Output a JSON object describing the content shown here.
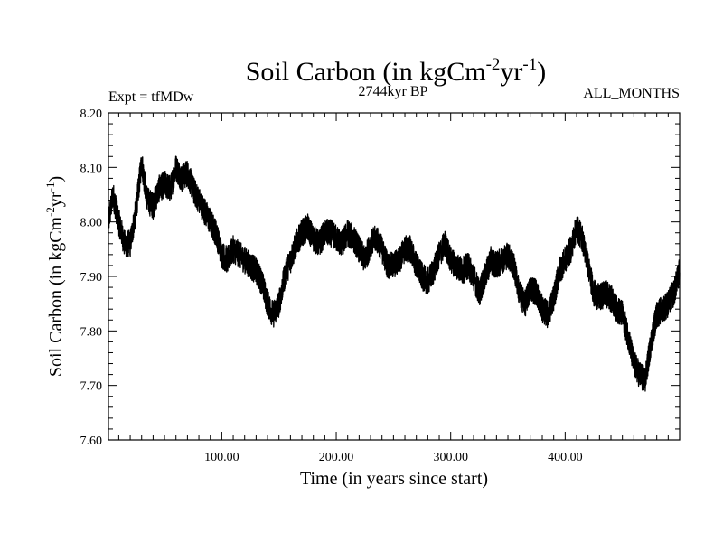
{
  "chart_data": {
    "type": "line",
    "title_main": "Soil Carbon (in kgCm",
    "title_sup1": "-2",
    "title_mid": "yr",
    "title_sup2": "-1",
    "title_end": ")",
    "left_annotation": "Expt = tfMDw",
    "center_annotation": "2744kyr BP",
    "right_annotation": "ALL_MONTHS",
    "xlabel": "Time (in years since start)",
    "ylabel_main": "Soil Carbon (in kgCm",
    "ylabel_sup1": "-2",
    "ylabel_mid": "yr",
    "ylabel_sup2": "-1",
    "ylabel_end": ")",
    "xlim": [
      1,
      500
    ],
    "ylim": [
      7.6,
      8.2
    ],
    "xticks": [
      {
        "value": 100,
        "label": "100.00"
      },
      {
        "value": 200,
        "label": "200.00"
      },
      {
        "value": 300,
        "label": "300.00"
      },
      {
        "value": 400,
        "label": "400.00"
      }
    ],
    "yticks": [
      {
        "value": 7.6,
        "label": "7.60"
      },
      {
        "value": 7.7,
        "label": "7.70"
      },
      {
        "value": 7.8,
        "label": "7.80"
      },
      {
        "value": 7.9,
        "label": "7.90"
      },
      {
        "value": 8.0,
        "label": "8.00"
      },
      {
        "value": 8.1,
        "label": "8.10"
      },
      {
        "value": 8.2,
        "label": "8.20"
      }
    ],
    "noise_amplitude": 0.025,
    "series": [
      {
        "name": "Soil Carbon",
        "x": [
          1,
          5,
          10,
          15,
          20,
          25,
          30,
          35,
          40,
          45,
          50,
          55,
          60,
          65,
          70,
          75,
          80,
          85,
          90,
          95,
          100,
          105,
          110,
          115,
          120,
          125,
          130,
          135,
          140,
          145,
          150,
          155,
          160,
          165,
          170,
          175,
          180,
          185,
          190,
          195,
          200,
          205,
          210,
          215,
          220,
          225,
          230,
          235,
          240,
          245,
          250,
          255,
          260,
          265,
          270,
          275,
          280,
          285,
          290,
          295,
          300,
          305,
          310,
          315,
          320,
          325,
          330,
          335,
          340,
          345,
          350,
          355,
          360,
          365,
          370,
          375,
          380,
          385,
          390,
          395,
          400,
          405,
          410,
          415,
          420,
          425,
          430,
          435,
          440,
          445,
          450,
          455,
          460,
          465,
          470,
          475,
          480,
          485,
          490,
          495,
          500
        ],
        "values": [
          8.0,
          8.05,
          8.0,
          7.96,
          7.96,
          8.02,
          8.11,
          8.04,
          8.03,
          8.06,
          8.07,
          8.06,
          8.1,
          8.08,
          8.09,
          8.06,
          8.04,
          8.02,
          8.0,
          7.98,
          7.94,
          7.93,
          7.95,
          7.94,
          7.93,
          7.92,
          7.91,
          7.89,
          7.85,
          7.83,
          7.85,
          7.9,
          7.93,
          7.96,
          7.98,
          7.99,
          7.97,
          7.96,
          7.98,
          7.98,
          7.97,
          7.96,
          7.98,
          7.97,
          7.95,
          7.93,
          7.96,
          7.97,
          7.95,
          7.92,
          7.92,
          7.93,
          7.95,
          7.95,
          7.92,
          7.9,
          7.89,
          7.91,
          7.94,
          7.96,
          7.93,
          7.92,
          7.91,
          7.92,
          7.9,
          7.87,
          7.9,
          7.93,
          7.92,
          7.93,
          7.94,
          7.92,
          7.87,
          7.85,
          7.88,
          7.87,
          7.84,
          7.83,
          7.86,
          7.91,
          7.93,
          7.95,
          7.99,
          7.97,
          7.92,
          7.87,
          7.86,
          7.87,
          7.86,
          7.84,
          7.83,
          7.79,
          7.74,
          7.72,
          7.71,
          7.78,
          7.83,
          7.84,
          7.85,
          7.87,
          7.91
        ]
      }
    ]
  }
}
